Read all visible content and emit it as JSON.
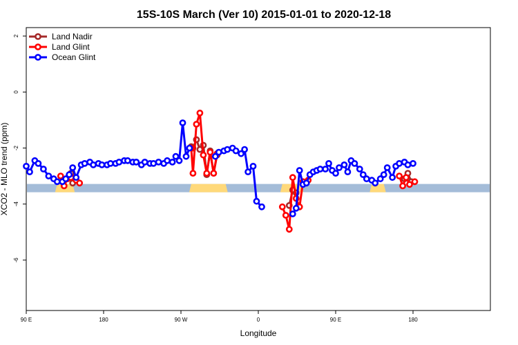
{
  "chart_data": {
    "type": "line",
    "title": "15S-10S March (Ver 10)   2015-01-01 to 2020-12-18",
    "xlabel": "Longitude",
    "ylabel": "XCO2 - MLO trend (ppm)",
    "xlim": [
      -90,
      180
    ],
    "ylim": [
      -7.8,
      2.3
    ],
    "x_ticks": [
      {
        "value": -90,
        "label": "90 E"
      },
      {
        "value": -45,
        "label": "180"
      },
      {
        "value": 0,
        "label": "90 W"
      },
      {
        "value": 45,
        "label": "0"
      },
      {
        "value": 90,
        "label": "90 E"
      },
      {
        "value": 135,
        "label": "180"
      }
    ],
    "y_ticks": [
      {
        "value": 2,
        "label": "2"
      },
      {
        "value": 0,
        "label": "0"
      },
      {
        "value": -2,
        "label": "-2"
      },
      {
        "value": -4,
        "label": "-4"
      },
      {
        "value": -6,
        "label": "-6"
      }
    ],
    "legend_position": "top-left",
    "grid": false,
    "surface_bar": {
      "y": -3.43,
      "colors": {
        "ocean": "#a4bcd8",
        "land": "#ffd97a"
      },
      "land_ranges": [
        [
          -72,
          -63
        ],
        [
          6,
          26
        ],
        [
          59,
          70
        ],
        [
          111,
          118
        ]
      ]
    },
    "series": [
      {
        "name": "Land Nadir",
        "color": "#a52a2a",
        "segments": [
          [
            [
              -64,
              -2.9
            ],
            [
              -63,
              -3.25
            ]
          ],
          [
            [
              6,
              -1.95
            ],
            [
              7,
              -2.0
            ],
            [
              9,
              -1.7
            ],
            [
              11,
              -2.05
            ],
            [
              13,
              -1.9
            ],
            [
              15,
              -2.95
            ],
            [
              17,
              -2.1
            ],
            [
              19,
              -2.9
            ],
            [
              21,
              -2.25
            ]
          ],
          [
            [
              63,
              -4.05
            ],
            [
              65,
              -3.5
            ],
            [
              67,
              -3.6
            ]
          ],
          [
            [
              130,
              -3.1
            ],
            [
              132,
              -2.9
            ],
            [
              134,
              -3.2
            ]
          ]
        ]
      },
      {
        "name": "Land Glint",
        "color": "#ff0000",
        "segments": [
          [
            [
              -70,
              -3.0
            ],
            [
              -68,
              -3.35
            ],
            [
              -66,
              -3.1
            ],
            [
              -64,
              -3.05
            ],
            [
              -61,
              -3.15
            ],
            [
              -59,
              -3.25
            ]
          ],
          [
            [
              6,
              -2.0
            ],
            [
              7,
              -2.9
            ],
            [
              9,
              -1.15
            ],
            [
              11,
              -0.75
            ],
            [
              13,
              -2.25
            ],
            [
              15,
              -2.9
            ],
            [
              17,
              -2.15
            ],
            [
              19,
              -2.9
            ],
            [
              21,
              -2.2
            ]
          ],
          [
            [
              59,
              -4.1
            ],
            [
              61,
              -4.4
            ],
            [
              63,
              -4.9
            ],
            [
              65,
              -3.05
            ],
            [
              67,
              -3.8
            ],
            [
              69,
              -4.1
            ],
            [
              71,
              -3.2
            ],
            [
              74,
              -3.15
            ]
          ],
          [
            [
              127,
              -3.0
            ],
            [
              129,
              -3.35
            ],
            [
              131,
              -3.05
            ],
            [
              133,
              -3.3
            ],
            [
              136,
              -3.2
            ]
          ]
        ]
      },
      {
        "name": "Ocean Glint",
        "color": "#0000ff",
        "segments": [
          [
            [
              -90,
              -2.65
            ],
            [
              -88,
              -2.85
            ],
            [
              -85,
              -2.45
            ],
            [
              -83,
              -2.55
            ],
            [
              -80,
              -2.75
            ],
            [
              -77,
              -3.0
            ],
            [
              -74,
              -3.1
            ],
            [
              -72,
              -3.2
            ],
            [
              -69,
              -3.2
            ],
            [
              -67,
              -3.1
            ],
            [
              -65,
              -2.95
            ],
            [
              -63,
              -2.7
            ],
            [
              -61,
              -3.05
            ],
            [
              -58,
              -2.6
            ],
            [
              -56,
              -2.55
            ],
            [
              -53,
              -2.5
            ],
            [
              -51,
              -2.6
            ],
            [
              -48,
              -2.55
            ],
            [
              -46,
              -2.6
            ],
            [
              -43,
              -2.6
            ],
            [
              -41,
              -2.55
            ],
            [
              -38,
              -2.55
            ],
            [
              -36,
              -2.5
            ],
            [
              -33,
              -2.45
            ],
            [
              -31,
              -2.45
            ],
            [
              -28,
              -2.5
            ],
            [
              -26,
              -2.5
            ],
            [
              -23,
              -2.6
            ],
            [
              -21,
              -2.5
            ],
            [
              -18,
              -2.55
            ],
            [
              -16,
              -2.55
            ],
            [
              -13,
              -2.5
            ],
            [
              -10,
              -2.55
            ],
            [
              -8,
              -2.45
            ],
            [
              -5,
              -2.5
            ],
            [
              -3,
              -2.3
            ],
            [
              -1,
              -2.45
            ],
            [
              1,
              -1.1
            ],
            [
              3,
              -2.3
            ],
            [
              5,
              -2.0
            ]
          ],
          [
            [
              20,
              -2.3
            ],
            [
              22,
              -2.15
            ],
            [
              25,
              -2.1
            ],
            [
              27,
              -2.05
            ],
            [
              30,
              -2.0
            ],
            [
              32,
              -2.1
            ],
            [
              35,
              -2.2
            ],
            [
              37,
              -2.05
            ],
            [
              39,
              -2.85
            ],
            [
              42,
              -2.65
            ],
            [
              44,
              -3.9
            ],
            [
              47,
              -4.1
            ]
          ],
          [
            [
              65,
              -4.35
            ],
            [
              67,
              -4.15
            ],
            [
              69,
              -2.8
            ],
            [
              71,
              -3.3
            ],
            [
              73,
              -3.25
            ],
            [
              75,
              -2.95
            ],
            [
              77,
              -2.85
            ],
            [
              79,
              -2.8
            ],
            [
              81,
              -2.75
            ],
            [
              84,
              -2.75
            ],
            [
              86,
              -2.55
            ],
            [
              88,
              -2.8
            ],
            [
              90,
              -2.9
            ],
            [
              92,
              -2.7
            ],
            [
              95,
              -2.6
            ],
            [
              97,
              -2.85
            ],
            [
              99,
              -2.45
            ],
            [
              101,
              -2.55
            ],
            [
              104,
              -2.75
            ],
            [
              106,
              -2.95
            ],
            [
              108,
              -3.1
            ],
            [
              111,
              -3.15
            ],
            [
              113,
              -3.25
            ],
            [
              116,
              -3.1
            ],
            [
              118,
              -2.95
            ],
            [
              120,
              -2.7
            ],
            [
              123,
              -3.05
            ],
            [
              125,
              -2.65
            ],
            [
              127,
              -2.55
            ],
            [
              130,
              -2.5
            ],
            [
              132,
              -2.6
            ],
            [
              135,
              -2.55
            ]
          ]
        ]
      }
    ]
  }
}
